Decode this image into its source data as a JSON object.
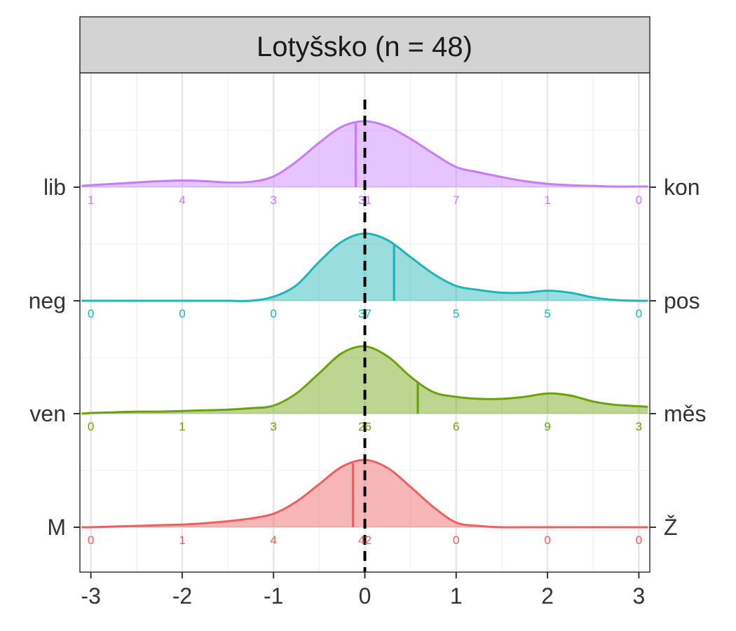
{
  "chart_data": {
    "type": "ridgeline",
    "title": "Lotyšsko (n = 48)",
    "xlabel": "",
    "ylabel": "",
    "xlim": [
      -3.12,
      3.12
    ],
    "x_ticks": [
      -3,
      -2,
      -1,
      0,
      1,
      2,
      3
    ],
    "x_tick_labels": [
      "-3",
      "-2",
      "-1",
      "0",
      "1",
      "2",
      "3"
    ],
    "reference_line": {
      "x": 0,
      "style": "dashed",
      "color": "#000000"
    },
    "grid": true,
    "density_x": [
      -3.1,
      -3,
      -2.75,
      -2.5,
      -2.25,
      -2,
      -1.75,
      -1.5,
      -1.25,
      -1,
      -0.75,
      -0.5,
      -0.25,
      0,
      0.25,
      0.5,
      0.75,
      1,
      1.25,
      1.5,
      1.75,
      2,
      2.25,
      2.5,
      2.75,
      3,
      3.1
    ],
    "series": [
      {
        "left_label": "lib",
        "right_label": "kon",
        "color": "#C77CFF",
        "marker_x": -0.1,
        "counts": [
          "1",
          "4",
          "3",
          "31",
          "7",
          "1",
          "0"
        ],
        "density": [
          0.02,
          0.03,
          0.05,
          0.07,
          0.09,
          0.1,
          0.09,
          0.07,
          0.08,
          0.16,
          0.38,
          0.66,
          0.9,
          0.98,
          0.9,
          0.72,
          0.5,
          0.3,
          0.22,
          0.15,
          0.09,
          0.05,
          0.03,
          0.02,
          0.01,
          0.01,
          0.01
        ]
      },
      {
        "left_label": "neg",
        "right_label": "pos",
        "color": "#1FB4B8",
        "marker_x": 0.32,
        "counts": [
          "0",
          "0",
          "0",
          "37",
          "5",
          "5",
          "0"
        ],
        "density": [
          0.0,
          0.0,
          0.0,
          0.0,
          0.0,
          0.0,
          0.0,
          0.0,
          0.0,
          0.06,
          0.23,
          0.58,
          0.88,
          1.0,
          0.9,
          0.65,
          0.4,
          0.22,
          0.16,
          0.12,
          0.12,
          0.15,
          0.12,
          0.05,
          0.01,
          0.0,
          0.0
        ]
      },
      {
        "left_label": "ven",
        "right_label": "měs",
        "color": "#6BA10C",
        "marker_x": 0.58,
        "counts": [
          "0",
          "1",
          "3",
          "26",
          "6",
          "9",
          "3"
        ],
        "density": [
          0.0,
          0.01,
          0.02,
          0.03,
          0.03,
          0.04,
          0.05,
          0.06,
          0.08,
          0.12,
          0.3,
          0.6,
          0.9,
          1.0,
          0.85,
          0.55,
          0.32,
          0.25,
          0.22,
          0.22,
          0.25,
          0.3,
          0.27,
          0.18,
          0.13,
          0.11,
          0.1
        ]
      },
      {
        "left_label": "M",
        "right_label": "Ž",
        "color": "#EF5F5F",
        "marker_x": -0.13,
        "counts": [
          "0",
          "1",
          "4",
          "42",
          "0",
          "0",
          "0"
        ],
        "density": [
          0.0,
          0.0,
          0.01,
          0.02,
          0.03,
          0.04,
          0.06,
          0.09,
          0.13,
          0.2,
          0.38,
          0.64,
          0.9,
          1.0,
          0.88,
          0.6,
          0.3,
          0.07,
          0.02,
          0.0,
          0.0,
          0.0,
          0.0,
          0.0,
          0.0,
          0.0,
          0.0
        ]
      }
    ]
  }
}
